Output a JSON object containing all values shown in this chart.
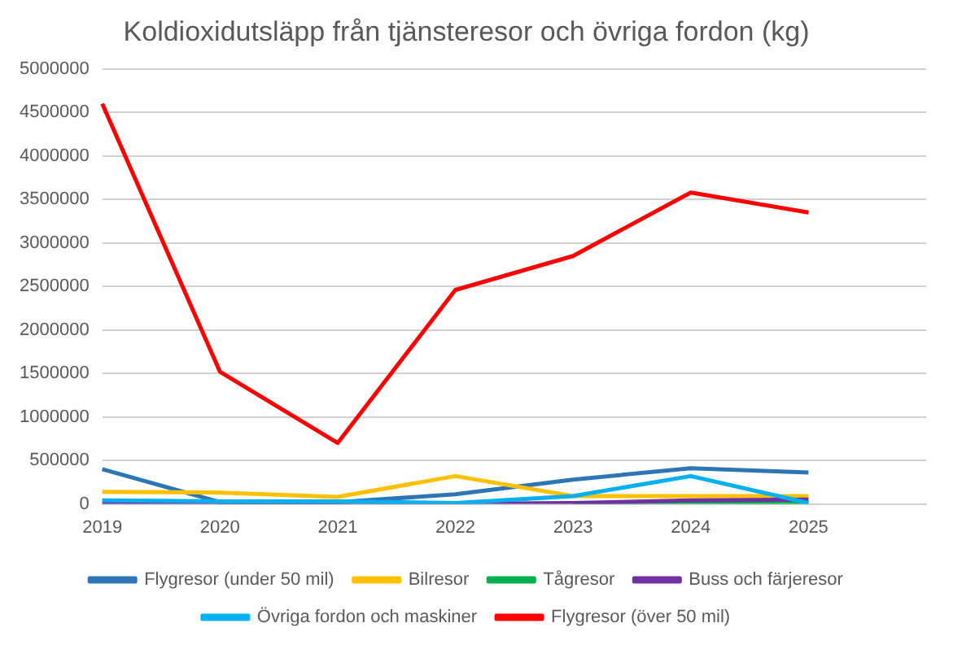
{
  "chart_data": {
    "type": "line",
    "title": "Koldioxidutsläpp från tjänsteresor och övriga fordon (kg)",
    "categories": [
      "2019",
      "2020",
      "2021",
      "2022",
      "2023",
      "2024",
      "2025",
      null
    ],
    "series": [
      {
        "name": "Flygresor (under 50 mil)",
        "color": "#2e75b6",
        "values": [
          400000,
          20000,
          20000,
          110000,
          280000,
          410000,
          360000,
          null
        ]
      },
      {
        "name": "Bilresor",
        "color": "#ffc000",
        "values": [
          140000,
          130000,
          80000,
          320000,
          90000,
          90000,
          90000,
          null
        ]
      },
      {
        "name": "Tågresor",
        "color": "#00b050",
        "values": [
          null,
          null,
          null,
          null,
          0,
          20000,
          20000,
          null
        ]
      },
      {
        "name": "Buss och färjeresor",
        "color": "#7030a0",
        "values": [
          0,
          0,
          0,
          0,
          10000,
          40000,
          50000,
          null
        ]
      },
      {
        "name": "Övriga fordon och maskiner",
        "color": "#00b0f0",
        "values": [
          40000,
          30000,
          30000,
          10000,
          90000,
          320000,
          10000,
          null
        ]
      },
      {
        "name": "Flygresor (över 50 mil)",
        "color": "#ff0000",
        "values": [
          4600000,
          1520000,
          700000,
          2460000,
          2850000,
          3580000,
          3350000,
          null
        ]
      }
    ],
    "ylim": [
      0,
      5000000
    ],
    "yticks": [
      0,
      500000,
      1000000,
      1500000,
      2000000,
      2500000,
      3000000,
      3500000,
      4000000,
      4500000,
      5000000
    ],
    "grid": "y",
    "legend": "bottom",
    "marker": "none",
    "line_style": "solid"
  }
}
